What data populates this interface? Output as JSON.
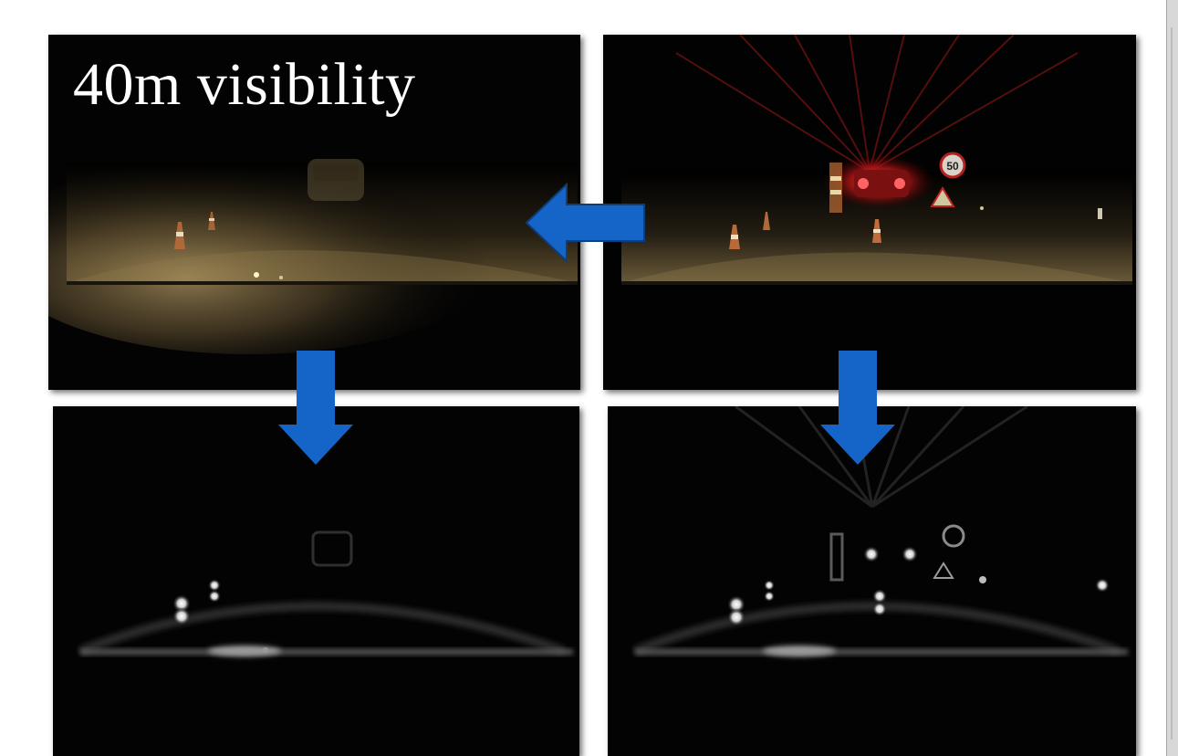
{
  "caption": {
    "text": "40m visibility",
    "color": "#ffffff"
  },
  "panels": [
    {
      "name": "foggy-road-scene",
      "description_tag": "foggy-night-road-with-cones"
    },
    {
      "name": "clear-road-scene-with-car-and-signs",
      "sign_text": "50"
    },
    {
      "name": "foggy-processed-grayscale"
    },
    {
      "name": "clear-processed-grayscale"
    }
  ],
  "arrows": {
    "color": "#1565c8",
    "outline": "#0d3d7a",
    "items": [
      {
        "name": "arrow-left-icon",
        "direction": "left"
      },
      {
        "name": "arrow-down-icon",
        "direction": "down"
      },
      {
        "name": "arrow-down-icon",
        "direction": "down"
      }
    ]
  }
}
